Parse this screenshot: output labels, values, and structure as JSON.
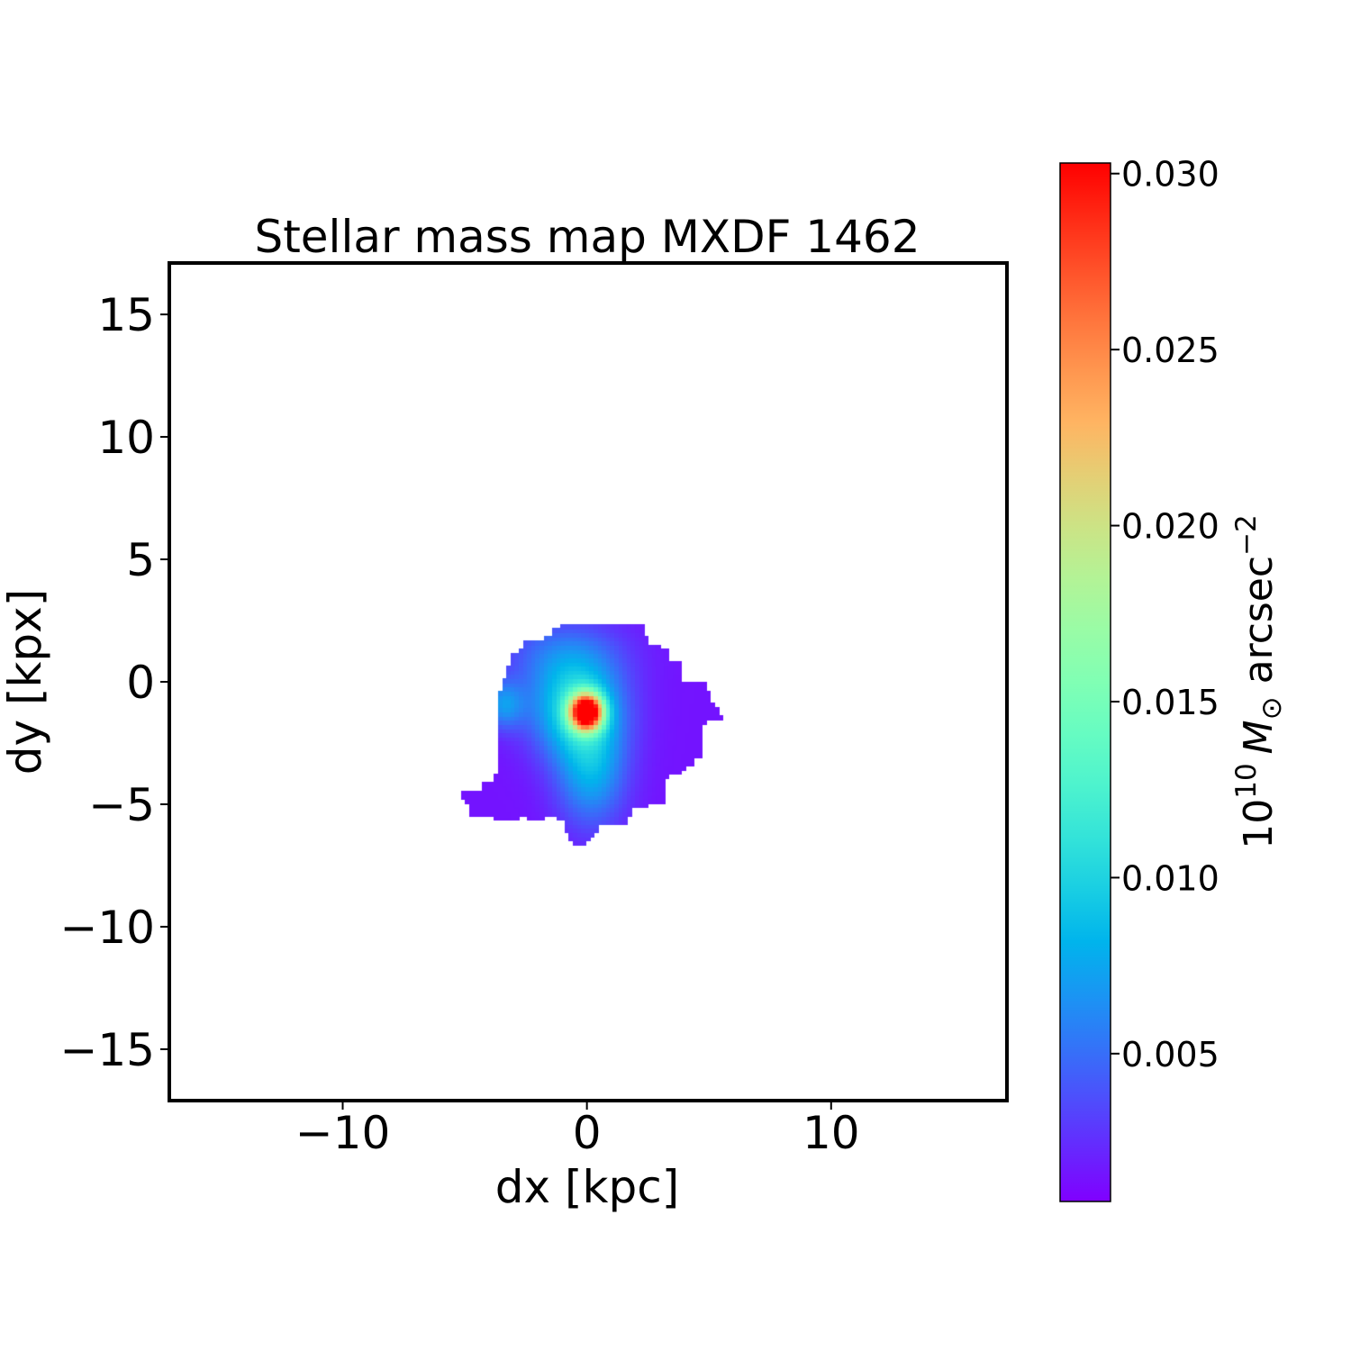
{
  "chart_data": {
    "type": "heatmap",
    "title": "Stellar mass map MXDF 1462",
    "xlabel": "dx [kpc]",
    "ylabel": "dy [kpx]",
    "xlim": [
      -17.1,
      17.2
    ],
    "ylim": [
      -17.1,
      17.1
    ],
    "xticks": [
      -10,
      0,
      10
    ],
    "xtick_labels": [
      "−10",
      "0",
      "10"
    ],
    "yticks": [
      -15,
      -10,
      -5,
      0,
      5,
      10,
      15
    ],
    "ytick_labels": [
      "−15",
      "−10",
      "−5",
      "0",
      "5",
      "10",
      "15"
    ],
    "colormap": "rainbow",
    "colorbar": {
      "label_base": "10",
      "label_exp": "10",
      "label_sym": "M",
      "label_sub": "⊙",
      "label_unit": " arcsec",
      "label_unit_exp": "−2",
      "vmin": 0.0008,
      "vmax": 0.0303,
      "ticks": [
        0.005,
        0.01,
        0.015,
        0.02,
        0.025,
        0.03
      ],
      "tick_labels": [
        "0.005",
        "0.010",
        "0.015",
        "0.020",
        "0.025",
        "0.030"
      ]
    },
    "peak": {
      "dx": 0.0,
      "dy": -1.2,
      "value": 0.03
    },
    "background_value": 0.0015,
    "components": [
      {
        "dx": 0.0,
        "dy": -1.2,
        "sx": 0.45,
        "sy": 0.5,
        "amp": 0.029
      },
      {
        "dx": -0.4,
        "dy": -1.0,
        "sx": 1.3,
        "sy": 1.4,
        "amp": 0.009
      },
      {
        "dx": 0.2,
        "dy": -3.6,
        "sx": 1.0,
        "sy": 1.6,
        "amp": 0.006
      },
      {
        "dx": -3.4,
        "dy": -0.9,
        "sx": 0.6,
        "sy": 0.7,
        "amp": 0.005
      },
      {
        "dx": -1.0,
        "dy": 1.2,
        "sx": 1.8,
        "sy": 1.0,
        "amp": 0.003
      }
    ],
    "mask_polygon": [
      [
        -0.55,
        2.43
      ],
      [
        2.36,
        2.43
      ],
      [
        2.36,
        1.92
      ],
      [
        2.54,
        1.92
      ],
      [
        2.54,
        1.58
      ],
      [
        3.06,
        1.58
      ],
      [
        3.06,
        1.25
      ],
      [
        3.43,
        1.25
      ],
      [
        3.43,
        0.74
      ],
      [
        3.87,
        0.74
      ],
      [
        3.87,
        -0.11
      ],
      [
        4.94,
        -0.11
      ],
      [
        4.94,
        -0.33
      ],
      [
        5.12,
        -0.33
      ],
      [
        5.12,
        -0.85
      ],
      [
        5.27,
        -0.85
      ],
      [
        5.27,
        -1.1
      ],
      [
        5.45,
        -1.1
      ],
      [
        5.45,
        -1.33
      ],
      [
        5.64,
        -1.33
      ],
      [
        5.64,
        -1.51
      ],
      [
        4.94,
        -1.51
      ],
      [
        4.94,
        -1.77
      ],
      [
        4.79,
        -1.77
      ],
      [
        4.79,
        -2.91
      ],
      [
        4.64,
        -2.91
      ],
      [
        4.64,
        -3.17
      ],
      [
        4.35,
        -3.17
      ],
      [
        4.35,
        -3.39
      ],
      [
        4.09,
        -3.39
      ],
      [
        4.09,
        -3.57
      ],
      [
        3.9,
        -3.57
      ],
      [
        3.9,
        -3.72
      ],
      [
        3.39,
        -3.72
      ],
      [
        3.39,
        -3.94
      ],
      [
        3.24,
        -3.94
      ],
      [
        3.24,
        -4.94
      ],
      [
        2.5,
        -4.94
      ],
      [
        2.5,
        -5.16
      ],
      [
        1.8,
        -5.16
      ],
      [
        1.8,
        -5.49
      ],
      [
        1.69,
        -5.49
      ],
      [
        1.69,
        -5.89
      ],
      [
        0.48,
        -5.89
      ],
      [
        0.48,
        -6.08
      ],
      [
        0.29,
        -6.08
      ],
      [
        0.29,
        -6.3
      ],
      [
        0.07,
        -6.3
      ],
      [
        0.07,
        -6.45
      ],
      [
        -0.04,
        -6.45
      ],
      [
        -0.04,
        -6.63
      ],
      [
        -0.55,
        -6.63
      ],
      [
        -0.55,
        -6.45
      ],
      [
        -0.7,
        -6.45
      ],
      [
        -0.7,
        -6.22
      ],
      [
        -0.88,
        -6.22
      ],
      [
        -0.88,
        -5.56
      ],
      [
        -1.22,
        -5.56
      ],
      [
        -1.22,
        -5.41
      ],
      [
        -1.69,
        -5.41
      ],
      [
        -1.69,
        -5.56
      ],
      [
        -2.43,
        -5.56
      ],
      [
        -2.43,
        -5.41
      ],
      [
        -2.76,
        -5.41
      ],
      [
        -2.76,
        -5.56
      ],
      [
        -3.83,
        -5.56
      ],
      [
        -3.83,
        -5.41
      ],
      [
        -4.83,
        -5.41
      ],
      [
        -4.83,
        -4.9
      ],
      [
        -5.01,
        -4.9
      ],
      [
        -5.01,
        -4.75
      ],
      [
        -5.16,
        -4.75
      ],
      [
        -5.16,
        -4.38
      ],
      [
        -4.31,
        -4.38
      ],
      [
        -4.31,
        -4.05
      ],
      [
        -3.79,
        -4.05
      ],
      [
        -3.79,
        -3.79
      ],
      [
        -3.65,
        -3.79
      ],
      [
        -3.65,
        -0.29
      ],
      [
        -3.46,
        -0.29
      ],
      [
        -3.46,
        0.15
      ],
      [
        -3.28,
        0.15
      ],
      [
        -3.28,
        0.63
      ],
      [
        -3.17,
        0.63
      ],
      [
        -3.17,
        0.88
      ],
      [
        -3.06,
        0.88
      ],
      [
        -3.06,
        1.14
      ],
      [
        -2.76,
        1.14
      ],
      [
        -2.76,
        1.36
      ],
      [
        -2.54,
        1.36
      ],
      [
        -2.54,
        1.62
      ],
      [
        -1.69,
        1.62
      ],
      [
        -1.69,
        1.84
      ],
      [
        -1.4,
        1.84
      ],
      [
        -1.4,
        2.1
      ],
      [
        -1.07,
        2.1
      ],
      [
        -1.07,
        2.32
      ],
      [
        -0.55,
        2.32
      ]
    ]
  }
}
